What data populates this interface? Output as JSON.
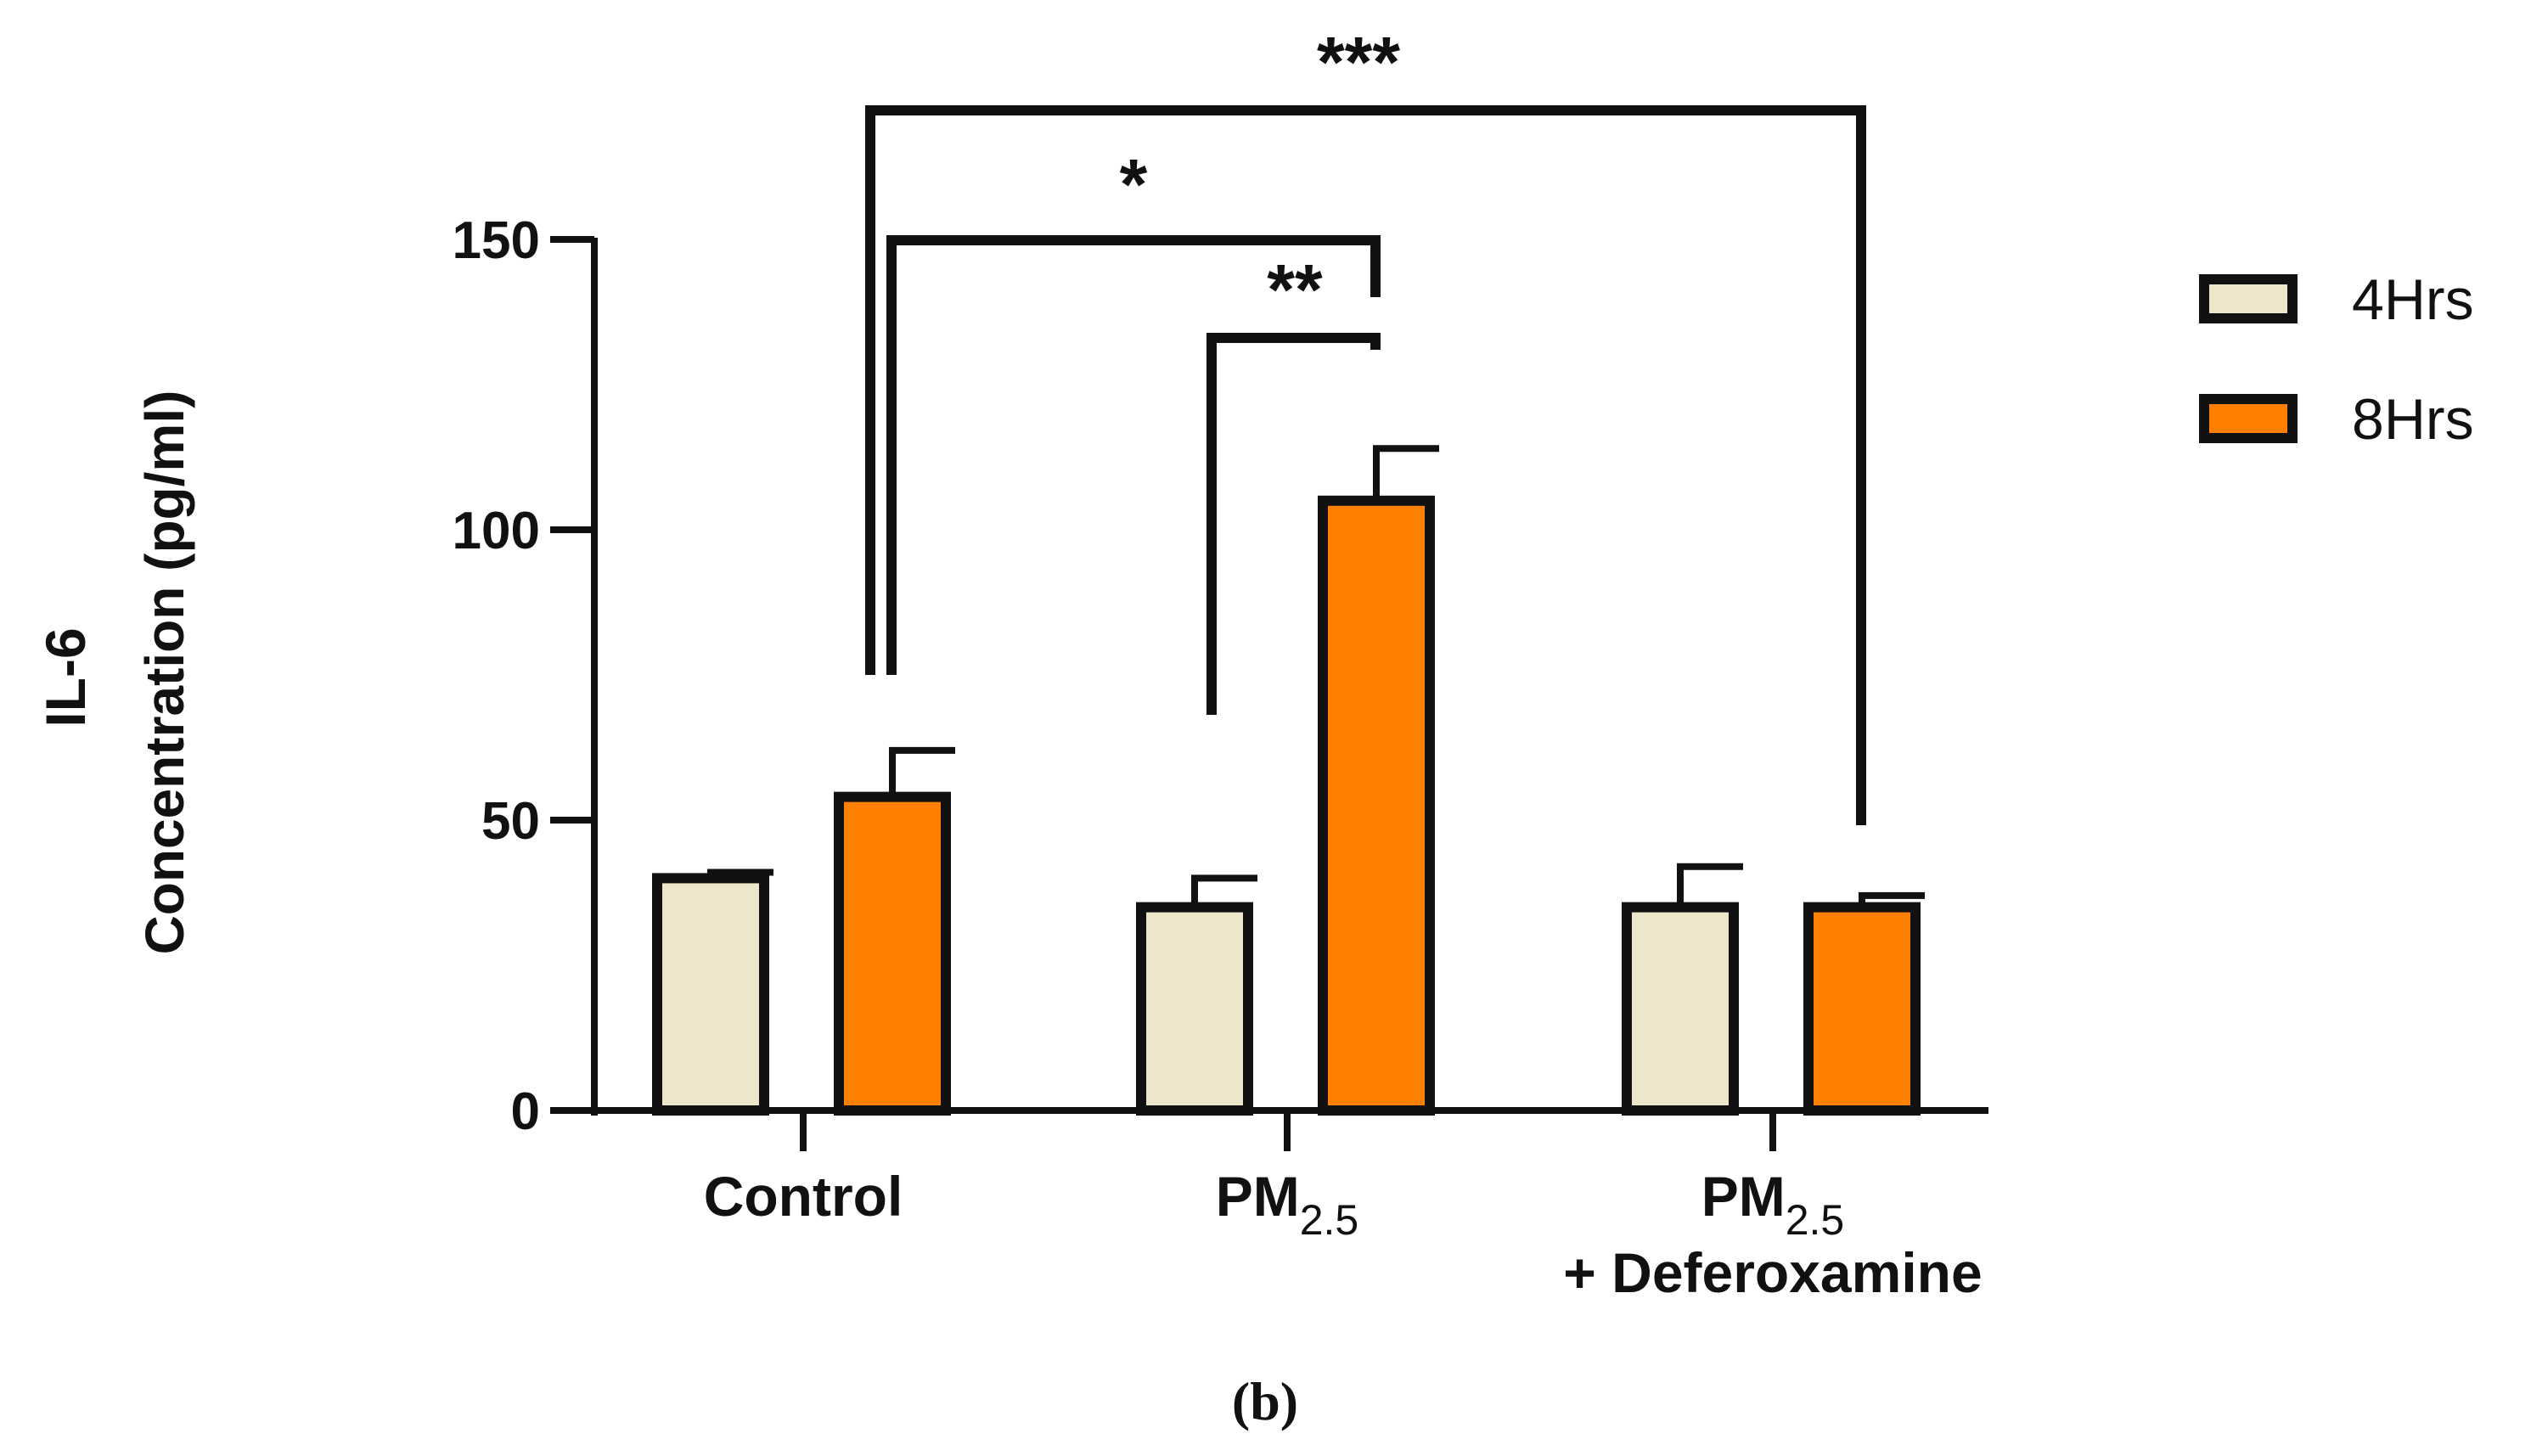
{
  "chart_data": {
    "type": "bar",
    "ylabel_line1": "IL-6",
    "ylabel_line2": "Concentration  (pg/ml)",
    "ylim": [
      0,
      150
    ],
    "yticks": [
      0,
      50,
      100,
      150
    ],
    "ytick_labels": [
      "0",
      "50",
      "100",
      "150"
    ],
    "categories": [
      {
        "main": "Control",
        "sub": "",
        "line2": ""
      },
      {
        "main": "PM",
        "sub": "2.5",
        "line2": ""
      },
      {
        "main": "PM",
        "sub": "2.5",
        "line2": "+ Deferoxamine"
      }
    ],
    "series": [
      {
        "name": "4Hrs",
        "color": "#ede6cb",
        "values": [
          40,
          35,
          35
        ],
        "errors": [
          1,
          5,
          7
        ]
      },
      {
        "name": "8Hrs",
        "color": "#ff8000",
        "values": [
          54,
          105,
          35
        ],
        "errors": [
          8,
          9,
          2
        ]
      }
    ],
    "significance": [
      {
        "label": "***",
        "from": {
          "category": 0,
          "series": 1
        },
        "to": {
          "category": 2,
          "series": 1
        }
      },
      {
        "label": "*",
        "from": {
          "category": 0,
          "series": 1
        },
        "to": {
          "category": 1,
          "series": 1
        }
      },
      {
        "label": "**",
        "from": {
          "category": 1,
          "series": 0
        },
        "to": {
          "category": 1,
          "series": 1
        }
      }
    ],
    "legend_position": "right"
  },
  "panel_label": "(b)"
}
